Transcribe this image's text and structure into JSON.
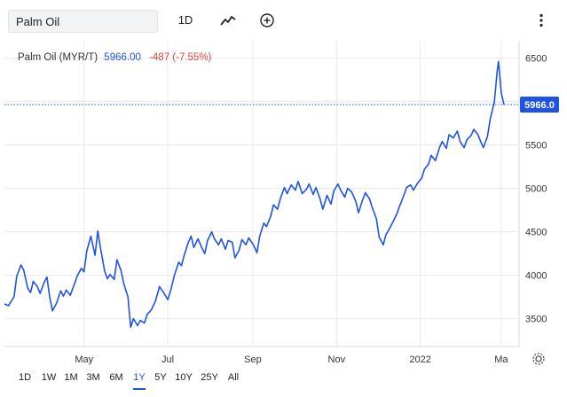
{
  "search": {
    "value": "Palm Oil"
  },
  "toolbar": {
    "interval_label": "1D"
  },
  "legend": {
    "name": "Palm Oil (MYR/T)",
    "price": "5966.00",
    "change": "-487 (-7.55%)"
  },
  "colors": {
    "line": "#1e53e5",
    "negative": "#e5403a",
    "badge": "#1e53e5",
    "grid": "#e8eaee"
  },
  "icons": {
    "chart_type": "line-chart-icon",
    "compare": "plus-circle-icon",
    "menu": "vertical-dots-icon",
    "settings": "gear-icon"
  },
  "range_buttons": [
    "1D",
    "1W",
    "1M",
    "3M",
    "6M",
    "1Y",
    "5Y",
    "10Y",
    "25Y",
    "All"
  ],
  "active_range": "1Y",
  "chart_data": {
    "type": "line",
    "title": "",
    "xlabel": "",
    "ylabel": "",
    "ylim": [
      3180,
      6700
    ],
    "y_ticks": [
      3500,
      4000,
      4500,
      5000,
      5500,
      6000,
      6500
    ],
    "y_tick_labels": [
      "3500",
      "4000",
      "4500",
      "5000",
      "5500",
      "6500"
    ],
    "x_tick_labels": [
      "May",
      "Jul",
      "Sep",
      "Nov",
      "2022",
      "Ma"
    ],
    "x_tick_dates": [
      "2021-05-01",
      "2021-07-01",
      "2021-09-01",
      "2021-11-01",
      "2022-01-01",
      "2022-03-01"
    ],
    "x_range": [
      "2021-03-04",
      "2022-03-03"
    ],
    "last_value_label": "5966.0",
    "last_value": 5966,
    "grid": true,
    "series": [
      {
        "values": [
          [
            "2021-03-04",
            3670
          ],
          [
            "2021-03-07",
            3650
          ],
          [
            "2021-03-09",
            3700
          ],
          [
            "2021-03-11",
            3750
          ],
          [
            "2021-03-13",
            3990
          ],
          [
            "2021-03-16",
            4120
          ],
          [
            "2021-03-18",
            4060
          ],
          [
            "2021-03-21",
            3850
          ],
          [
            "2021-03-23",
            3800
          ],
          [
            "2021-03-25",
            3930
          ],
          [
            "2021-03-28",
            3870
          ],
          [
            "2021-03-30",
            3790
          ],
          [
            "2021-04-02",
            3920
          ],
          [
            "2021-04-04",
            3980
          ],
          [
            "2021-04-06",
            3750
          ],
          [
            "2021-04-08",
            3590
          ],
          [
            "2021-04-11",
            3680
          ],
          [
            "2021-04-14",
            3820
          ],
          [
            "2021-04-16",
            3760
          ],
          [
            "2021-04-18",
            3830
          ],
          [
            "2021-04-21",
            3770
          ],
          [
            "2021-04-24",
            3900
          ],
          [
            "2021-04-26",
            3990
          ],
          [
            "2021-04-29",
            4080
          ],
          [
            "2021-05-01",
            4040
          ],
          [
            "2021-05-03",
            4280
          ],
          [
            "2021-05-06",
            4450
          ],
          [
            "2021-05-09",
            4230
          ],
          [
            "2021-05-11",
            4510
          ],
          [
            "2021-05-13",
            4310
          ],
          [
            "2021-05-16",
            4050
          ],
          [
            "2021-05-18",
            3960
          ],
          [
            "2021-05-20",
            4010
          ],
          [
            "2021-05-23",
            3950
          ],
          [
            "2021-05-25",
            4180
          ],
          [
            "2021-05-28",
            4050
          ],
          [
            "2021-05-30",
            3900
          ],
          [
            "2021-06-02",
            3750
          ],
          [
            "2021-06-04",
            3400
          ],
          [
            "2021-06-06",
            3500
          ],
          [
            "2021-06-09",
            3420
          ],
          [
            "2021-06-11",
            3480
          ],
          [
            "2021-06-14",
            3450
          ],
          [
            "2021-06-16",
            3550
          ],
          [
            "2021-06-19",
            3600
          ],
          [
            "2021-06-22",
            3700
          ],
          [
            "2021-06-25",
            3870
          ],
          [
            "2021-06-28",
            3800
          ],
          [
            "2021-07-01",
            3720
          ],
          [
            "2021-07-03",
            3820
          ],
          [
            "2021-07-06",
            4010
          ],
          [
            "2021-07-09",
            4150
          ],
          [
            "2021-07-11",
            4110
          ],
          [
            "2021-07-13",
            4230
          ],
          [
            "2021-07-16",
            4380
          ],
          [
            "2021-07-18",
            4450
          ],
          [
            "2021-07-20",
            4320
          ],
          [
            "2021-07-23",
            4420
          ],
          [
            "2021-07-26",
            4310
          ],
          [
            "2021-07-28",
            4250
          ],
          [
            "2021-07-30",
            4400
          ],
          [
            "2021-08-02",
            4500
          ],
          [
            "2021-08-04",
            4420
          ],
          [
            "2021-08-07",
            4350
          ],
          [
            "2021-08-09",
            4420
          ],
          [
            "2021-08-12",
            4300
          ],
          [
            "2021-08-14",
            4400
          ],
          [
            "2021-08-17",
            4380
          ],
          [
            "2021-08-19",
            4200
          ],
          [
            "2021-08-22",
            4290
          ],
          [
            "2021-08-24",
            4410
          ],
          [
            "2021-08-27",
            4350
          ],
          [
            "2021-08-29",
            4430
          ],
          [
            "2021-09-01",
            4360
          ],
          [
            "2021-09-04",
            4260
          ],
          [
            "2021-09-06",
            4450
          ],
          [
            "2021-09-09",
            4600
          ],
          [
            "2021-09-11",
            4560
          ],
          [
            "2021-09-14",
            4680
          ],
          [
            "2021-09-16",
            4810
          ],
          [
            "2021-09-19",
            4760
          ],
          [
            "2021-09-21",
            4880
          ],
          [
            "2021-09-24",
            5010
          ],
          [
            "2021-09-26",
            4940
          ],
          [
            "2021-09-29",
            5040
          ],
          [
            "2021-10-02",
            4980
          ],
          [
            "2021-10-04",
            5080
          ],
          [
            "2021-10-07",
            4940
          ],
          [
            "2021-10-10",
            4990
          ],
          [
            "2021-10-12",
            5050
          ],
          [
            "2021-10-15",
            4930
          ],
          [
            "2021-10-17",
            5010
          ],
          [
            "2021-10-20",
            4880
          ],
          [
            "2021-10-22",
            4760
          ],
          [
            "2021-10-25",
            4920
          ],
          [
            "2021-10-28",
            4820
          ],
          [
            "2021-10-30",
            4970
          ],
          [
            "2021-11-02",
            5050
          ],
          [
            "2021-11-04",
            4980
          ],
          [
            "2021-11-07",
            4900
          ],
          [
            "2021-11-09",
            5000
          ],
          [
            "2021-11-12",
            4960
          ],
          [
            "2021-11-15",
            4850
          ],
          [
            "2021-11-17",
            4720
          ],
          [
            "2021-11-20",
            4870
          ],
          [
            "2021-11-22",
            4950
          ],
          [
            "2021-11-25",
            4880
          ],
          [
            "2021-11-27",
            4780
          ],
          [
            "2021-11-30",
            4650
          ],
          [
            "2021-12-02",
            4440
          ],
          [
            "2021-12-05",
            4350
          ],
          [
            "2021-12-07",
            4470
          ],
          [
            "2021-12-09",
            4520
          ],
          [
            "2021-12-12",
            4610
          ],
          [
            "2021-12-15",
            4710
          ],
          [
            "2021-12-17",
            4800
          ],
          [
            "2021-12-20",
            4920
          ],
          [
            "2021-12-22",
            5010
          ],
          [
            "2021-12-25",
            5040
          ],
          [
            "2021-12-27",
            4980
          ],
          [
            "2021-12-30",
            5060
          ],
          [
            "2022-01-02",
            5120
          ],
          [
            "2022-01-04",
            5220
          ],
          [
            "2022-01-07",
            5280
          ],
          [
            "2022-01-09",
            5380
          ],
          [
            "2022-01-12",
            5320
          ],
          [
            "2022-01-15",
            5470
          ],
          [
            "2022-01-17",
            5540
          ],
          [
            "2022-01-20",
            5460
          ],
          [
            "2022-01-22",
            5620
          ],
          [
            "2022-01-25",
            5580
          ],
          [
            "2022-01-28",
            5660
          ],
          [
            "2022-01-30",
            5540
          ],
          [
            "2022-02-02",
            5470
          ],
          [
            "2022-02-04",
            5560
          ],
          [
            "2022-02-07",
            5610
          ],
          [
            "2022-02-09",
            5680
          ],
          [
            "2022-02-12",
            5620
          ],
          [
            "2022-02-14",
            5540
          ],
          [
            "2022-02-16",
            5470
          ],
          [
            "2022-02-19",
            5600
          ],
          [
            "2022-02-21",
            5800
          ],
          [
            "2022-02-24",
            6000
          ],
          [
            "2022-02-26",
            6350
          ],
          [
            "2022-02-27",
            6460
          ],
          [
            "2022-03-01",
            6100
          ],
          [
            "2022-03-03",
            5966
          ]
        ]
      }
    ]
  }
}
